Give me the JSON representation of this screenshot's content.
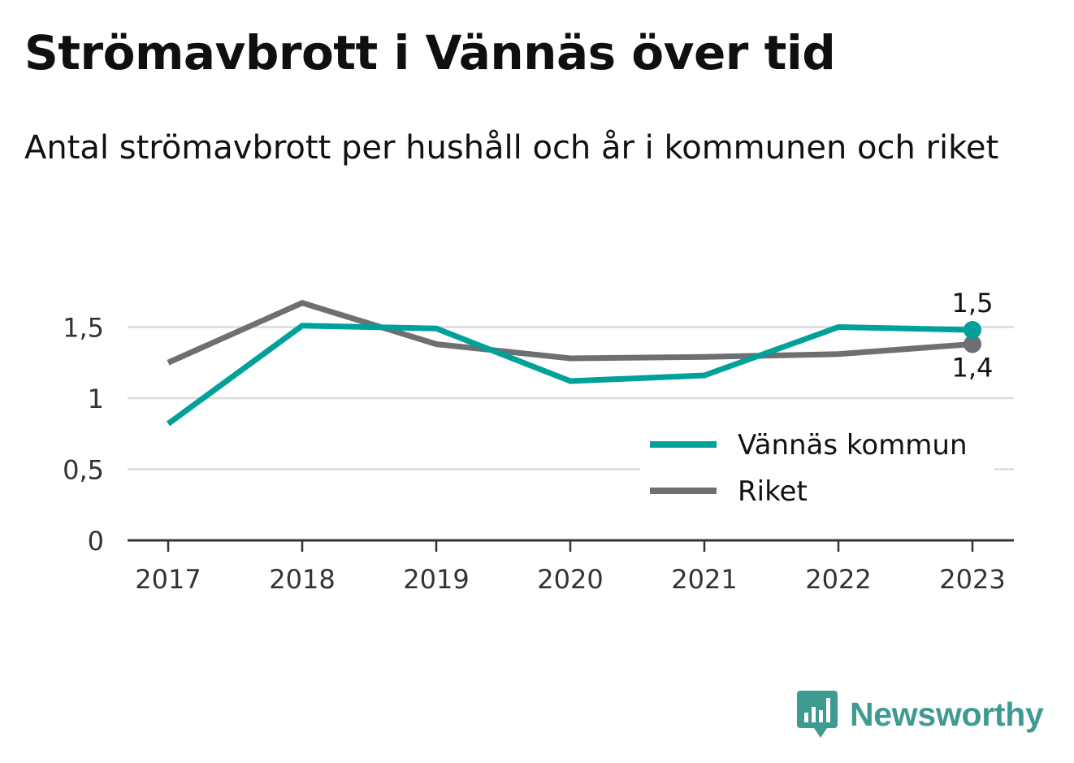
{
  "chart_data": {
    "type": "line",
    "title": "Strömavbrott i Vännäs över tid",
    "subtitle": "Antal strömavbrott per hushåll och år i kommunen och riket",
    "x": [
      "2017",
      "2018",
      "2019",
      "2020",
      "2021",
      "2022",
      "2023"
    ],
    "yticks": [
      "0",
      "0,5",
      "1",
      "1,5"
    ],
    "ytick_values": [
      0,
      0.5,
      1,
      1.5
    ],
    "ylim": [
      0,
      1.75
    ],
    "grid": true,
    "legend_position": "bottom-right",
    "series": [
      {
        "name": "Vännäs kommun",
        "color": "#00a19a",
        "values": [
          0.82,
          1.51,
          1.49,
          1.12,
          1.16,
          1.5,
          1.48
        ],
        "end_label": "1,5"
      },
      {
        "name": "Riket",
        "color": "#6e6e73",
        "values": [
          1.25,
          1.67,
          1.38,
          1.28,
          1.29,
          1.31,
          1.38
        ],
        "end_label": "1,4"
      }
    ]
  },
  "branding": {
    "name": "Newsworthy",
    "logo_icon": "newsworthy-logo-icon",
    "color": "#3f9a92"
  }
}
